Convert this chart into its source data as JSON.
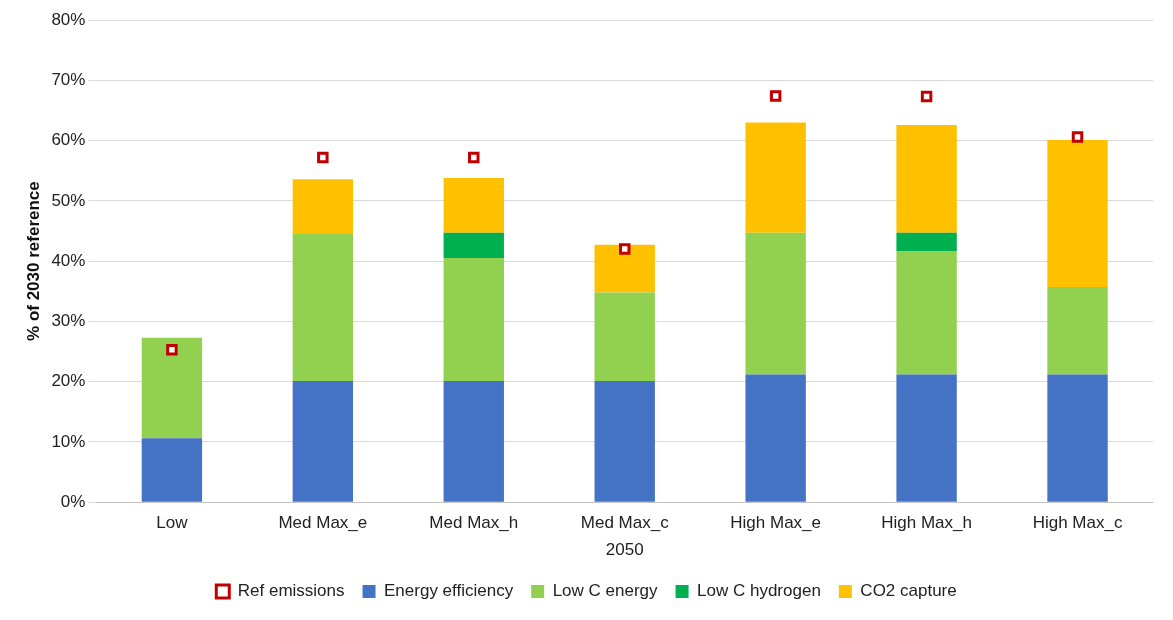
{
  "chart_data": {
    "type": "bar",
    "stacked": true,
    "ylabel": "% of 2030 reference",
    "xlabel": "2050",
    "categories": [
      "Low",
      "Med Max_e",
      "Med Max_h",
      "Med Max_c",
      "High Max_e",
      "High Max_h",
      "High Max_c"
    ],
    "series": [
      {
        "name": "Energy efficiency",
        "color": "#4472c4",
        "values": [
          10.6,
          20.1,
          20.1,
          20.1,
          21.2,
          21.2,
          21.2
        ]
      },
      {
        "name": "Low C energy",
        "color": "#92d050",
        "values": [
          16.7,
          24.4,
          20.4,
          14.7,
          23.5,
          20.4,
          14.5
        ]
      },
      {
        "name": "Low C hydrogen",
        "color": "#00b050",
        "values": [
          0,
          0,
          4.2,
          0,
          0,
          3.1,
          0
        ]
      },
      {
        "name": "CO2 capture",
        "color": "#ffc000",
        "values": [
          0,
          9.1,
          9.1,
          7.9,
          18.3,
          17.9,
          24.4
        ]
      },
      {
        "name": "Ref emissions",
        "type": "scatter",
        "marker": "square",
        "color": "#c00000",
        "values": [
          25.3,
          57.2,
          57.2,
          42.0,
          67.4,
          67.3,
          60.6
        ]
      }
    ],
    "ylim": [
      0,
      80
    ],
    "yticks": [
      {
        "value": 0,
        "label": "0%"
      },
      {
        "value": 10,
        "label": "10%"
      },
      {
        "value": 20,
        "label": "20%"
      },
      {
        "value": 30,
        "label": "30%"
      },
      {
        "value": 40,
        "label": "40%"
      },
      {
        "value": 50,
        "label": "50%"
      },
      {
        "value": 60,
        "label": "60%"
      },
      {
        "value": 70,
        "label": "70%"
      },
      {
        "value": 80,
        "label": "80%"
      }
    ],
    "grid": "y",
    "legend": "bottom"
  }
}
